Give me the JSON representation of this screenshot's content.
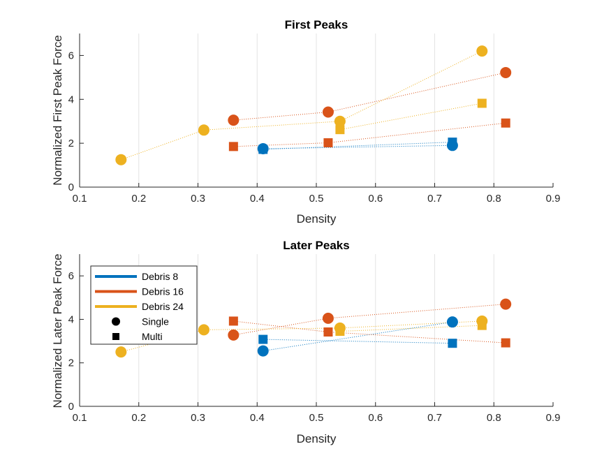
{
  "chart_data": [
    {
      "type": "scatter",
      "title": "First Peaks",
      "xlabel": "Density",
      "ylabel": "Normalized First Peak Force",
      "xlim": [
        0.1,
        0.9
      ],
      "ylim": [
        0,
        7
      ],
      "xticks": [
        "0.1",
        "0.2",
        "0.3",
        "0.4",
        "0.5",
        "0.6",
        "0.7",
        "0.8",
        "0.9"
      ],
      "yticks": [
        "0",
        "2",
        "4",
        "6"
      ],
      "grid": "x",
      "series": [
        {
          "group": "Debris 8",
          "marker": "circle",
          "color": "#0072BD",
          "x": [
            0.41,
            0.73
          ],
          "y": [
            1.75,
            1.9
          ]
        },
        {
          "group": "Debris 8",
          "marker": "square",
          "color": "#0072BD",
          "x": [
            0.41,
            0.73
          ],
          "y": [
            1.72,
            2.05
          ]
        },
        {
          "group": "Debris 16",
          "marker": "circle",
          "color": "#D95319",
          "x": [
            0.36,
            0.52,
            0.82
          ],
          "y": [
            3.05,
            3.42,
            5.22
          ]
        },
        {
          "group": "Debris 16",
          "marker": "square",
          "color": "#D95319",
          "x": [
            0.36,
            0.52,
            0.82
          ],
          "y": [
            1.85,
            2.02,
            2.92
          ]
        },
        {
          "group": "Debris 24",
          "marker": "circle",
          "color": "#EDB120",
          "x": [
            0.17,
            0.31,
            0.54,
            0.78
          ],
          "y": [
            1.25,
            2.6,
            3.0,
            6.2
          ]
        },
        {
          "group": "Debris 24",
          "marker": "square",
          "color": "#EDB120",
          "x": [
            0.54,
            0.78
          ],
          "y": [
            2.62,
            3.82
          ]
        }
      ]
    },
    {
      "type": "scatter",
      "title": "Later Peaks",
      "xlabel": "Density",
      "ylabel": "Normalized Later Peak Force",
      "xlim": [
        0.1,
        0.9
      ],
      "ylim": [
        0,
        7
      ],
      "xticks": [
        "0.1",
        "0.2",
        "0.3",
        "0.4",
        "0.5",
        "0.6",
        "0.7",
        "0.8",
        "0.9"
      ],
      "yticks": [
        "0",
        "2",
        "4",
        "6"
      ],
      "grid": "x",
      "legend_position": "top-left",
      "legend": [
        {
          "label": "Debris 8",
          "kind": "line",
          "color": "#0072BD"
        },
        {
          "label": "Debris 16",
          "kind": "line",
          "color": "#D95319"
        },
        {
          "label": "Debris 24",
          "kind": "line",
          "color": "#EDB120"
        },
        {
          "label": "Single",
          "kind": "circle",
          "color": "#000000"
        },
        {
          "label": "Multi",
          "kind": "square",
          "color": "#000000"
        }
      ],
      "series": [
        {
          "group": "Debris 8",
          "marker": "circle",
          "color": "#0072BD",
          "x": [
            0.41,
            0.73
          ],
          "y": [
            2.55,
            3.88
          ]
        },
        {
          "group": "Debris 8",
          "marker": "square",
          "color": "#0072BD",
          "x": [
            0.41,
            0.73
          ],
          "y": [
            3.08,
            2.9
          ]
        },
        {
          "group": "Debris 16",
          "marker": "circle",
          "color": "#D95319",
          "x": [
            0.36,
            0.52,
            0.82
          ],
          "y": [
            3.28,
            4.05,
            4.7
          ]
        },
        {
          "group": "Debris 16",
          "marker": "square",
          "color": "#D95319",
          "x": [
            0.36,
            0.52,
            0.82
          ],
          "y": [
            3.92,
            3.42,
            2.92
          ]
        },
        {
          "group": "Debris 24",
          "marker": "circle",
          "color": "#EDB120",
          "x": [
            0.17,
            0.31,
            0.54,
            0.78
          ],
          "y": [
            2.5,
            3.52,
            3.6,
            3.92
          ]
        },
        {
          "group": "Debris 24",
          "marker": "square",
          "color": "#EDB120",
          "x": [
            0.54,
            0.78
          ],
          "y": [
            3.45,
            3.72
          ]
        }
      ]
    }
  ]
}
